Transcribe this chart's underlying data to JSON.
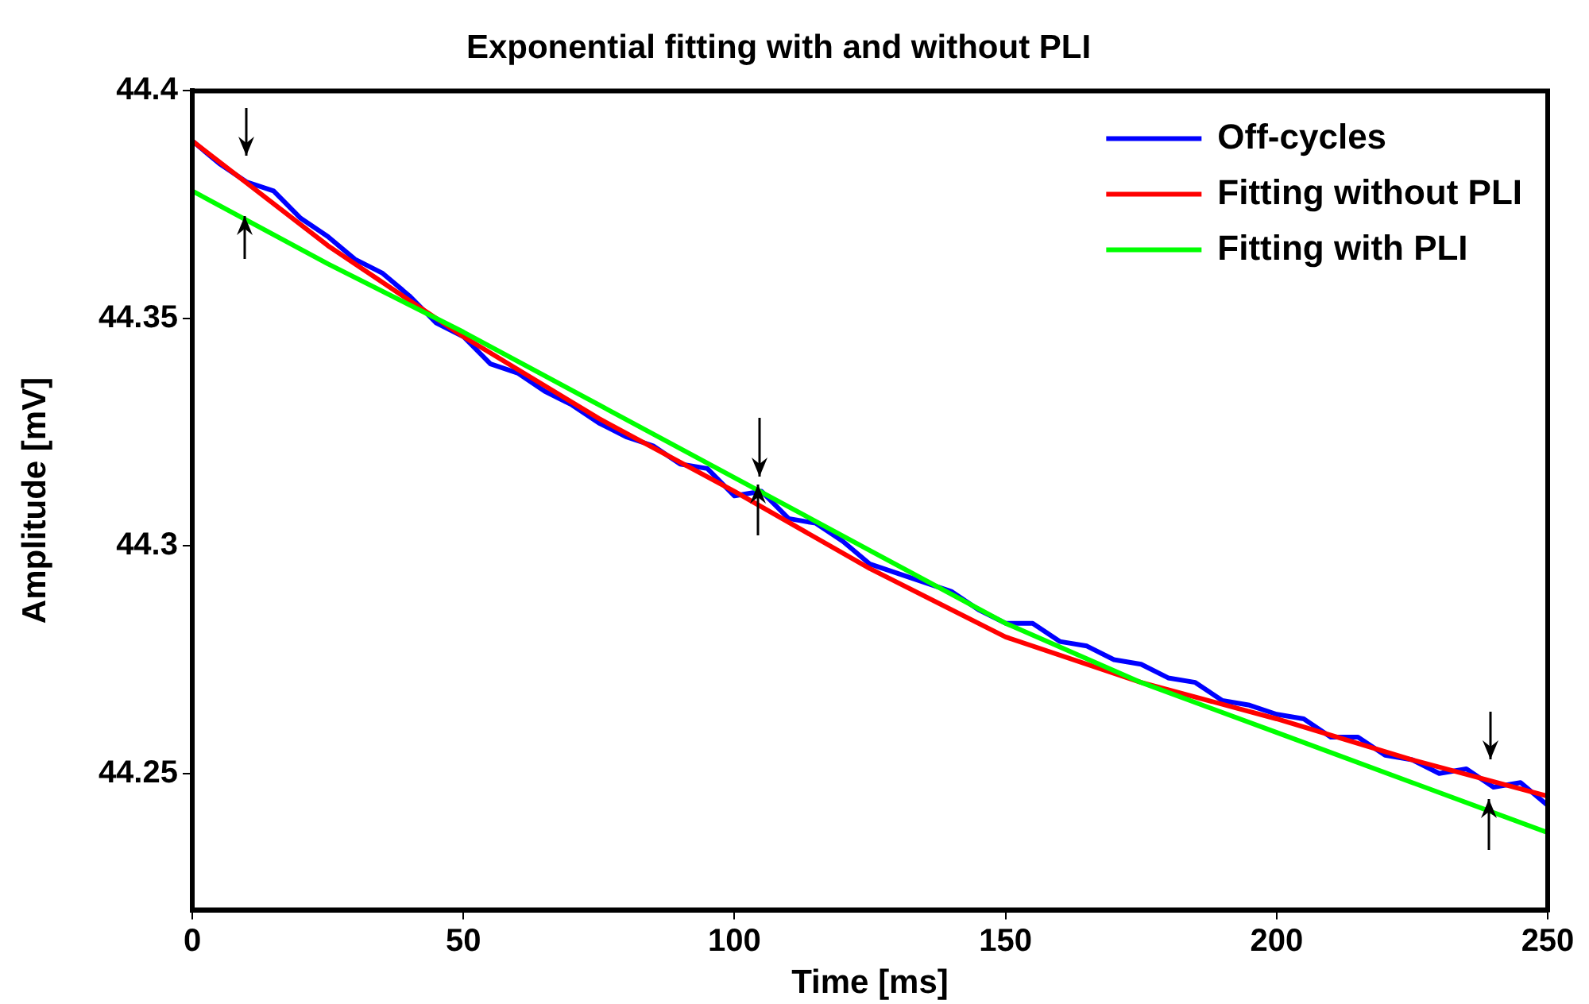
{
  "chart_data": {
    "type": "line",
    "title": "Exponential fitting with and without PLI",
    "xlabel": "Time [ms]",
    "ylabel": "Amplitude [mV]",
    "xlim": [
      0,
      250
    ],
    "xticks": [
      0,
      50,
      100,
      150,
      200,
      250
    ],
    "ylim": [
      44.22,
      44.4
    ],
    "yticks": [
      44.25,
      44.3,
      44.35,
      44.4
    ],
    "grid": false,
    "legend": "top right",
    "marker": "none",
    "line_style": "solid",
    "series": [
      {
        "name": "Off-cycles",
        "color": "#0000ff",
        "x": [
          0,
          5,
          10,
          15,
          20,
          25,
          30,
          35,
          40,
          45,
          50,
          55,
          60,
          65,
          70,
          75,
          80,
          85,
          90,
          95,
          100,
          105,
          110,
          115,
          120,
          125,
          130,
          135,
          140,
          145,
          150,
          155,
          160,
          165,
          170,
          175,
          180,
          185,
          190,
          195,
          200,
          205,
          210,
          215,
          220,
          225,
          230,
          235,
          240,
          245,
          250
        ],
        "values": [
          44.389,
          44.384,
          44.38,
          44.378,
          44.372,
          44.368,
          44.363,
          44.36,
          44.355,
          44.349,
          44.346,
          44.34,
          44.338,
          44.334,
          44.331,
          44.327,
          44.324,
          44.322,
          44.318,
          44.317,
          44.311,
          44.312,
          44.306,
          44.305,
          44.301,
          44.296,
          44.294,
          44.292,
          44.29,
          44.286,
          44.283,
          44.283,
          44.279,
          44.278,
          44.275,
          44.274,
          44.271,
          44.27,
          44.266,
          44.265,
          44.263,
          44.262,
          44.258,
          44.258,
          44.254,
          44.253,
          44.25,
          44.251,
          44.247,
          44.248,
          44.243
        ]
      },
      {
        "name": "Fitting without PLI",
        "color": "#ff0000",
        "x": [
          0,
          25,
          50,
          75,
          100,
          125,
          150,
          175,
          200,
          225,
          250
        ],
        "values": [
          44.389,
          44.366,
          44.346,
          44.328,
          44.312,
          44.295,
          44.28,
          44.27,
          44.262,
          44.253,
          44.245
        ]
      },
      {
        "name": "Fitting with PLI",
        "color": "#00ff00",
        "x": [
          0,
          25,
          50,
          75,
          100,
          125,
          150,
          175,
          200,
          225,
          250
        ],
        "values": [
          44.378,
          44.362,
          44.347,
          44.331,
          44.315,
          44.299,
          44.283,
          44.27,
          44.259,
          44.248,
          44.237
        ]
      }
    ]
  }
}
